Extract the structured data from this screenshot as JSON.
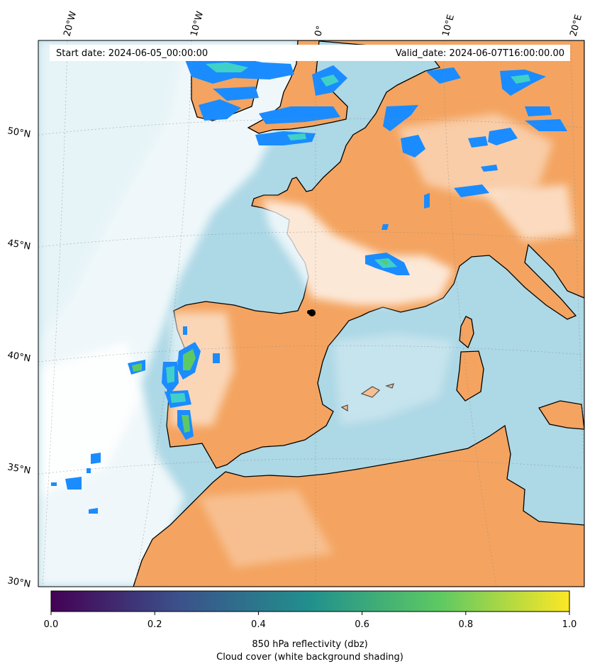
{
  "header": {
    "start_date": "Start date: 2024-06-05_00:00:00",
    "valid_date": "Valid_date: 2024-06-07T16:00:00.00"
  },
  "longitude_labels": [
    "20°W",
    "10°W",
    "0°",
    "10°E",
    "20°E"
  ],
  "latitude_labels": [
    "50°N",
    "45°N",
    "40°N",
    "35°N",
    "30°N"
  ],
  "colorbar": {
    "ticks": [
      "0.0",
      "0.2",
      "0.4",
      "0.6",
      "0.8",
      "1.0"
    ],
    "label_line1": "850 hPa reflectivity (dbz)",
    "label_line2": "Cloud cover (white background shading)",
    "colormap": [
      "#440154",
      "#3b528b",
      "#21908d",
      "#5dc963",
      "#fde725"
    ]
  },
  "colors": {
    "land": "#f4a460",
    "sea": "#add8e6",
    "cloud": "#ffffff",
    "coastline": "#000000"
  }
}
